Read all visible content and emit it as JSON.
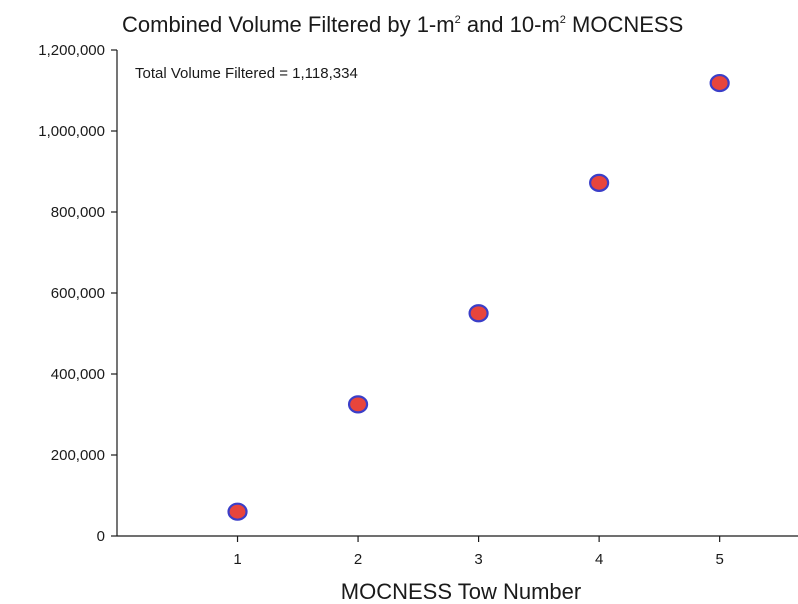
{
  "chart_data": {
    "type": "scatter",
    "title_parts": [
      "Combined Volume Filtered by 1-m",
      "2",
      " and 10-m",
      "2",
      " MOCNESS"
    ],
    "xlabel": "MOCNESS Tow Number",
    "ylabel": "",
    "annotation": "Total Volume Filtered = 1,118,334",
    "x": [
      1,
      2,
      3,
      4,
      5
    ],
    "y": [
      60000,
      325000,
      550000,
      872000,
      1118334
    ],
    "xlim": [
      0,
      5.65
    ],
    "ylim": [
      0,
      1200000
    ],
    "x_ticks": [
      1,
      2,
      3,
      4,
      5
    ],
    "x_tick_labels": [
      "1",
      "2",
      "3",
      "4",
      "5"
    ],
    "y_ticks": [
      0,
      200000,
      400000,
      600000,
      800000,
      1000000,
      1200000
    ],
    "y_tick_labels": [
      "0",
      "200,000",
      "400,000",
      "600,000",
      "800,000",
      "1,000,000",
      "1,200,000"
    ],
    "grid": false,
    "marker_fill": "#e8453c",
    "marker_edge": "#3b3ec8"
  }
}
